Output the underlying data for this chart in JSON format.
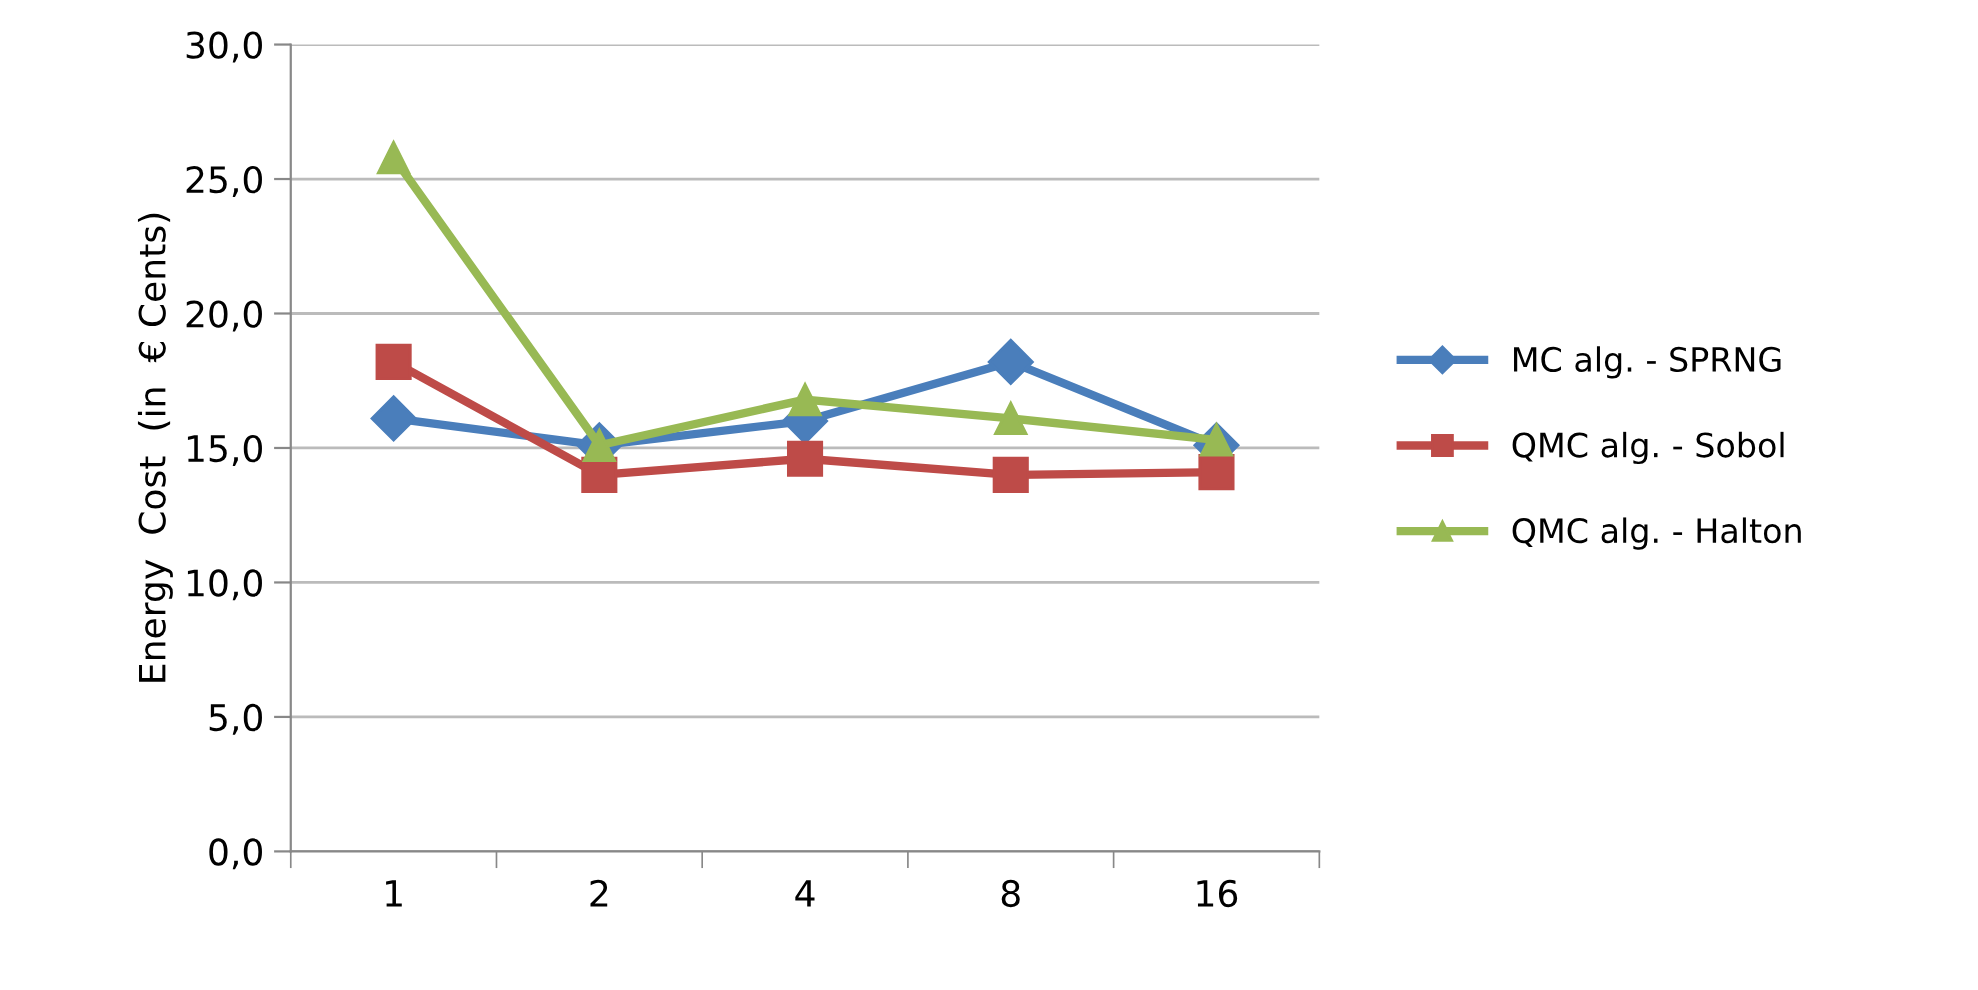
{
  "chart_data": {
    "type": "line",
    "ylabel": "Energy  Cost  (in  € Cents)",
    "categories": [
      "1",
      "2",
      "4",
      "8",
      "16"
    ],
    "series": [
      {
        "name": "MC alg. - SPRNG",
        "color": "#4a7ebb",
        "marker": "diamond",
        "values": [
          16.1,
          15.1,
          16.0,
          18.2,
          15.1
        ]
      },
      {
        "name": "QMC alg. - Sobol",
        "color": "#be4b48",
        "marker": "square",
        "values": [
          18.2,
          14.0,
          14.6,
          14.0,
          14.1
        ]
      },
      {
        "name": "QMC alg. - Halton",
        "color": "#98b954",
        "marker": "triangle",
        "values": [
          25.8,
          15.1,
          16.8,
          16.1,
          15.3
        ]
      }
    ],
    "ylim": [
      0,
      30
    ],
    "yticks": [
      {
        "value": 0,
        "label": "0,0"
      },
      {
        "value": 5,
        "label": "5,0"
      },
      {
        "value": 10,
        "label": "10,0"
      },
      {
        "value": 15,
        "label": "15,0"
      },
      {
        "value": 20,
        "label": "20,0"
      },
      {
        "value": 25,
        "label": "25,0"
      },
      {
        "value": 30,
        "label": "30,0"
      }
    ],
    "grid": "y",
    "legend": "right",
    "line_style": "solid"
  }
}
